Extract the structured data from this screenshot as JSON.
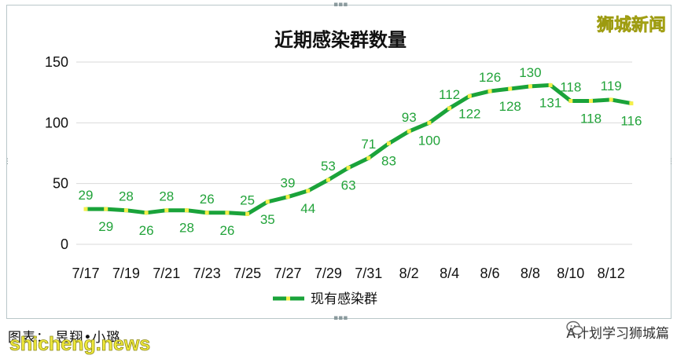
{
  "watermark_top": "狮城新闻",
  "caption": "图表：  昱翔•小璐",
  "site_watermark": "shicheng.news",
  "wechat_account": "A计划学习狮城篇",
  "chart_data": {
    "type": "line",
    "title": "近期感染群数量",
    "xlabel": "",
    "ylabel": "",
    "ylim": [
      0,
      150
    ],
    "yticks": [
      0,
      50,
      100,
      150
    ],
    "grid": "horizontal",
    "legend_placement": "bottom",
    "x_tick_labels": [
      "7/17",
      "7/19",
      "7/21",
      "7/23",
      "7/25",
      "7/27",
      "7/29",
      "7/31",
      "8/2",
      "8/4",
      "8/6",
      "8/8",
      "8/10",
      "8/12"
    ],
    "series": [
      {
        "name": "现有感染群",
        "color": "#1aa33a",
        "marker_color": "#f5f04a",
        "x": [
          "7/17",
          "7/18",
          "7/19",
          "7/20",
          "7/21",
          "7/22",
          "7/23",
          "7/24",
          "7/25",
          "7/26",
          "7/27",
          "7/28",
          "7/29",
          "7/30",
          "7/31",
          "8/1",
          "8/2",
          "8/3",
          "8/4",
          "8/5",
          "8/6",
          "8/7",
          "8/8",
          "8/9",
          "8/10",
          "8/11",
          "8/12",
          "8/13"
        ],
        "values": [
          29,
          29,
          28,
          26,
          28,
          28,
          26,
          26,
          25,
          35,
          39,
          44,
          53,
          63,
          71,
          83,
          93,
          100,
          112,
          122,
          126,
          128,
          130,
          131,
          118,
          118,
          119,
          116
        ]
      }
    ]
  }
}
